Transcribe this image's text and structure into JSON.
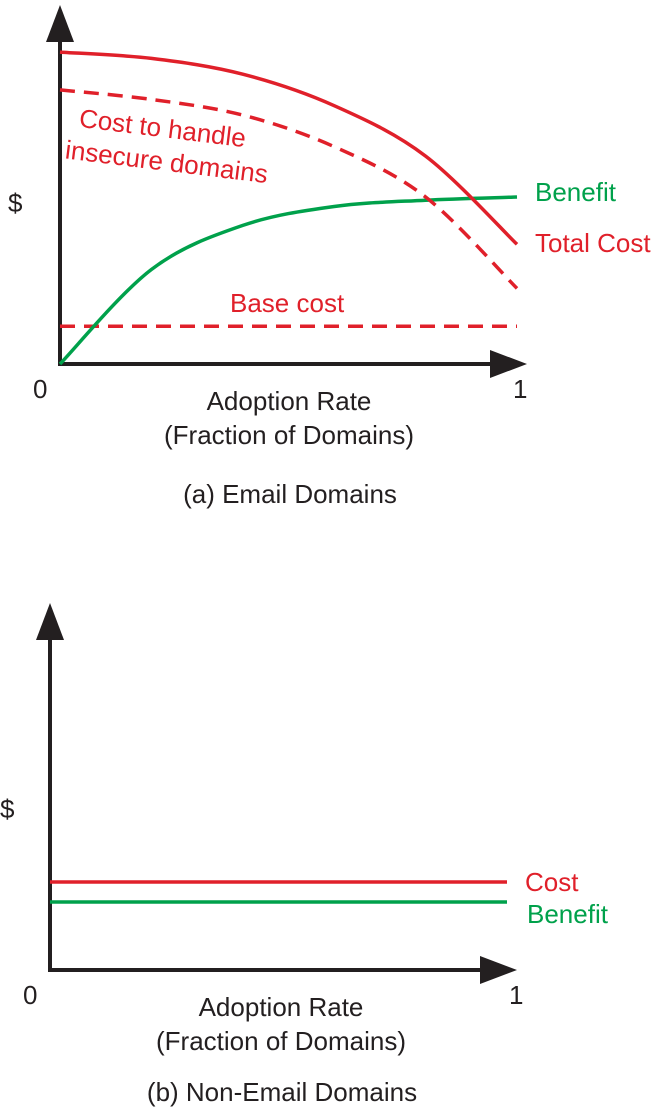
{
  "colors": {
    "axis": "#231f20",
    "cost": "#e0202a",
    "benefit": "#00a14b"
  },
  "chart_data": [
    {
      "type": "line",
      "caption": "(a) Email Domains",
      "ylabel": "$",
      "xlabel_line1": "Adoption Rate",
      "xlabel_line2": "(Fraction of Domains)",
      "x_tick_start": "0",
      "x_tick_end": "1",
      "xlim": [
        0,
        1
      ],
      "y_ticks_shown": false,
      "annotation_line1": "Cost to handle",
      "annotation_line2": "insecure domains",
      "series": [
        {
          "name": "Total Cost",
          "color": "#e0202a",
          "style": "solid",
          "x": [
            0,
            0.2,
            0.4,
            0.6,
            0.8,
            1.0
          ],
          "y": [
            0.99,
            0.97,
            0.92,
            0.82,
            0.66,
            0.38
          ]
        },
        {
          "name": "Cost to handle insecure domains",
          "color": "#e0202a",
          "style": "dashed",
          "x": [
            0,
            0.2,
            0.4,
            0.6,
            0.8,
            1.0
          ],
          "y": [
            0.87,
            0.84,
            0.79,
            0.69,
            0.53,
            0.24
          ]
        },
        {
          "name": "Base cost",
          "color": "#e0202a",
          "style": "dashed",
          "x": [
            0,
            1.0
          ],
          "y": [
            0.12,
            0.12
          ]
        },
        {
          "name": "Benefit",
          "color": "#00a14b",
          "style": "solid",
          "x": [
            0,
            0.2,
            0.4,
            0.6,
            0.8,
            1.0
          ],
          "y": [
            0.0,
            0.3,
            0.44,
            0.5,
            0.52,
            0.53
          ]
        }
      ]
    },
    {
      "type": "line",
      "caption": "(b) Non-Email Domains",
      "ylabel": "$",
      "xlabel_line1": "Adoption Rate",
      "xlabel_line2": "(Fraction of Domains)",
      "x_tick_start": "0",
      "x_tick_end": "1",
      "xlim": [
        0,
        1
      ],
      "y_ticks_shown": false,
      "series": [
        {
          "name": "Cost",
          "color": "#e0202a",
          "style": "solid",
          "x": [
            0,
            1.0
          ],
          "y": [
            0.22,
            0.22
          ]
        },
        {
          "name": "Benefit",
          "color": "#00a14b",
          "style": "solid",
          "x": [
            0,
            1.0
          ],
          "y": [
            0.17,
            0.17
          ]
        }
      ]
    }
  ]
}
